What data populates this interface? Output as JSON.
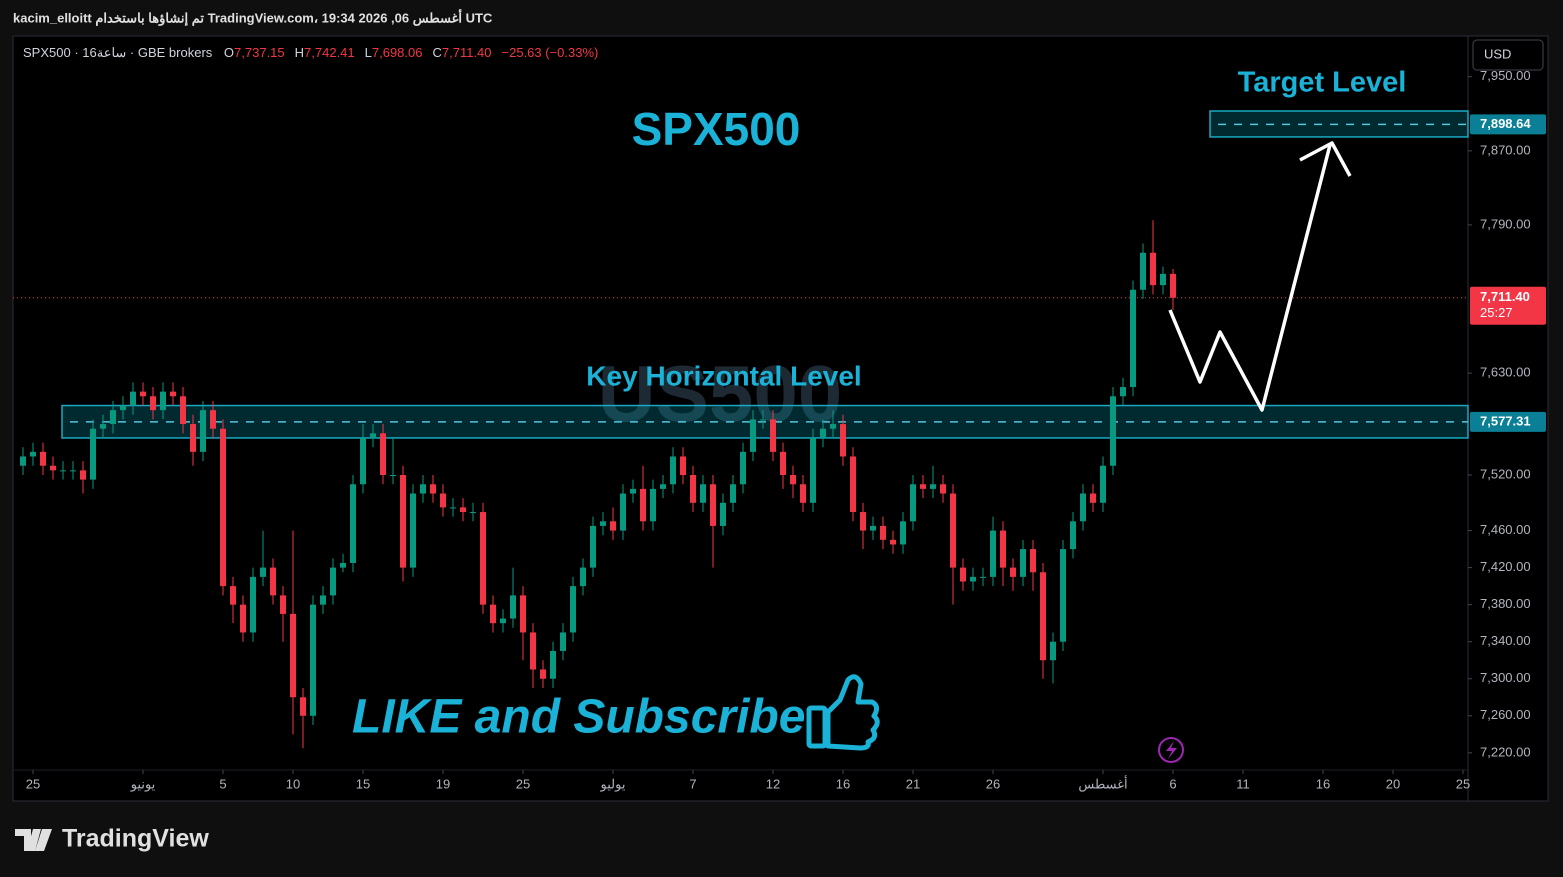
{
  "header": {
    "credit": "kacim_elloitt تم إنشاؤها باستخدام TradingView.com، 19:34 2026 ,06 أغسطس UTC",
    "symbol": "SPX500 · 16ساعة · GBE brokers",
    "ohlc": [
      {
        "k": "O",
        "v": "7,737.15"
      },
      {
        "k": "H",
        "v": "7,742.41"
      },
      {
        "k": "L",
        "v": "7,698.06"
      },
      {
        "k": "C",
        "v": "7,711.40"
      }
    ],
    "change": "−25.63 (−0.33%)",
    "currency": "USD"
  },
  "chart_data": {
    "type": "candlestick",
    "title": "SPX500",
    "watermark": "US500",
    "up_color": "#089981",
    "down_color": "#f23645",
    "annotations": {
      "target": "Target Level",
      "key": "Key Horizontal Level",
      "cta": "LIKE and Subscribe"
    },
    "xlim": [
      -1,
      144.5
    ],
    "ylim": [
      7168,
      7994
    ],
    "xticks": [
      {
        "value": 1,
        "label": "25"
      },
      {
        "value": 12,
        "label": "يونيو"
      },
      {
        "value": 20,
        "label": "5"
      },
      {
        "value": 27,
        "label": "10"
      },
      {
        "value": 34,
        "label": "15"
      },
      {
        "value": 42,
        "label": "19"
      },
      {
        "value": 50,
        "label": "25"
      },
      {
        "value": 59,
        "label": "يوليو"
      },
      {
        "value": 67,
        "label": "7"
      },
      {
        "value": 75,
        "label": "12"
      },
      {
        "value": 82,
        "label": "16"
      },
      {
        "value": 89,
        "label": "21"
      },
      {
        "value": 97,
        "label": "26"
      },
      {
        "value": 108,
        "label": "أغسطس"
      },
      {
        "value": 115,
        "label": "6"
      },
      {
        "value": 122,
        "label": "11"
      },
      {
        "value": 130,
        "label": "16"
      },
      {
        "value": 137,
        "label": "20"
      },
      {
        "value": 144,
        "label": "25"
      }
    ],
    "yticks": [
      {
        "value": 7950,
        "label": "7,950.00"
      },
      {
        "value": 7870,
        "label": "7,870.00"
      },
      {
        "value": 7790,
        "label": "7,790.00"
      },
      {
        "value": 7630,
        "label": "7,630.00"
      },
      {
        "value": 7520,
        "label": "7,520.00"
      },
      {
        "value": 7460,
        "label": "7,460.00"
      },
      {
        "value": 7420,
        "label": "7,420.00"
      },
      {
        "value": 7380,
        "label": "7,380.00"
      },
      {
        "value": 7340,
        "label": "7,340.00"
      },
      {
        "value": 7300,
        "label": "7,300.00"
      },
      {
        "value": 7260,
        "label": "7,260.00"
      },
      {
        "value": 7220,
        "label": "7,220.00"
      }
    ],
    "levels": [
      {
        "value": 7898.64,
        "label": "7,898.64",
        "zone": [
          7885,
          7913
        ]
      },
      {
        "value": 7577.31,
        "label": "7,577.31",
        "zone": [
          7560,
          7595
        ]
      }
    ],
    "last_price": {
      "value": 7711.4,
      "label": "7,711.40",
      "countdown": "25:27"
    },
    "candles": {
      "open": [
        7530,
        7540,
        7545,
        7530,
        7525,
        7525,
        7525,
        7515,
        7570,
        7575,
        7590,
        7595,
        7610,
        7605,
        7590,
        7610,
        7605,
        7575,
        7545,
        7590,
        7570,
        7400,
        7380,
        7350,
        7410,
        7420,
        7390,
        7370,
        7280,
        7260,
        7380,
        7390,
        7420,
        7425,
        7510,
        7560,
        7565,
        7520,
        7520,
        7420,
        7500,
        7510,
        7500,
        7485,
        7485,
        7480,
        7480,
        7380,
        7360,
        7365,
        7390,
        7350,
        7310,
        7300,
        7330,
        7350,
        7400,
        7420,
        7465,
        7470,
        7460,
        7500,
        7505,
        7470,
        7505,
        7510,
        7540,
        7520,
        7490,
        7510,
        7465,
        7490,
        7510,
        7545,
        7580,
        7580,
        7545,
        7520,
        7510,
        7490,
        7560,
        7570,
        7575,
        7540,
        7480,
        7460,
        7465,
        7450,
        7445,
        7470,
        7510,
        7505,
        7510,
        7500,
        7420,
        7405,
        7410,
        7410,
        7460,
        7420,
        7410,
        7440,
        7415,
        7320,
        7340,
        7440,
        7470,
        7500,
        7490,
        7530,
        7605,
        7615,
        7720,
        7760,
        7725,
        7737.15
      ],
      "high": [
        7550,
        7555,
        7555,
        7540,
        7535,
        7535,
        7535,
        7580,
        7585,
        7600,
        7605,
        7620,
        7620,
        7615,
        7620,
        7620,
        7615,
        7585,
        7600,
        7600,
        7580,
        7410,
        7390,
        7420,
        7460,
        7430,
        7400,
        7460,
        7290,
        7390,
        7400,
        7430,
        7435,
        7520,
        7575,
        7575,
        7575,
        7560,
        7530,
        7510,
        7520,
        7520,
        7510,
        7495,
        7495,
        7490,
        7490,
        7390,
        7375,
        7420,
        7400,
        7360,
        7320,
        7340,
        7360,
        7410,
        7430,
        7475,
        7480,
        7485,
        7510,
        7515,
        7530,
        7515,
        7520,
        7550,
        7550,
        7530,
        7520,
        7520,
        7500,
        7520,
        7555,
        7590,
        7590,
        7590,
        7555,
        7530,
        7520,
        7570,
        7580,
        7590,
        7585,
        7550,
        7490,
        7475,
        7475,
        7460,
        7480,
        7520,
        7520,
        7530,
        7520,
        7510,
        7430,
        7420,
        7420,
        7475,
        7470,
        7430,
        7450,
        7450,
        7425,
        7350,
        7450,
        7480,
        7510,
        7510,
        7540,
        7615,
        7625,
        7730,
        7770,
        7795,
        7745,
        7742.41
      ],
      "low": [
        7520,
        7530,
        7520,
        7515,
        7515,
        7515,
        7500,
        7505,
        7560,
        7565,
        7580,
        7585,
        7595,
        7580,
        7580,
        7595,
        7565,
        7530,
        7535,
        7560,
        7390,
        7360,
        7340,
        7340,
        7400,
        7380,
        7340,
        7240,
        7225,
        7250,
        7370,
        7380,
        7415,
        7415,
        7500,
        7550,
        7510,
        7510,
        7405,
        7410,
        7490,
        7490,
        7475,
        7475,
        7470,
        7470,
        7370,
        7350,
        7350,
        7355,
        7320,
        7290,
        7290,
        7290,
        7320,
        7340,
        7390,
        7410,
        7455,
        7450,
        7450,
        7490,
        7460,
        7460,
        7495,
        7500,
        7510,
        7480,
        7480,
        7420,
        7455,
        7480,
        7500,
        7535,
        7570,
        7535,
        7505,
        7495,
        7480,
        7480,
        7550,
        7560,
        7530,
        7470,
        7440,
        7450,
        7440,
        7435,
        7435,
        7460,
        7495,
        7495,
        7490,
        7380,
        7395,
        7395,
        7400,
        7400,
        7400,
        7395,
        7400,
        7395,
        7300,
        7295,
        7330,
        7430,
        7460,
        7480,
        7480,
        7520,
        7595,
        7605,
        7710,
        7715,
        7715,
        7698.06
      ],
      "close": [
        7540,
        7545,
        7530,
        7525,
        7525,
        7525,
        7515,
        7570,
        7575,
        7590,
        7595,
        7610,
        7605,
        7590,
        7610,
        7605,
        7575,
        7545,
        7590,
        7570,
        7400,
        7380,
        7350,
        7410,
        7420,
        7390,
        7370,
        7280,
        7260,
        7380,
        7390,
        7420,
        7425,
        7510,
        7560,
        7565,
        7520,
        7520,
        7420,
        7500,
        7510,
        7500,
        7485,
        7485,
        7480,
        7480,
        7380,
        7360,
        7365,
        7390,
        7350,
        7310,
        7300,
        7330,
        7350,
        7400,
        7420,
        7465,
        7470,
        7460,
        7500,
        7505,
        7470,
        7505,
        7510,
        7540,
        7520,
        7490,
        7510,
        7465,
        7490,
        7510,
        7545,
        7580,
        7580,
        7545,
        7520,
        7510,
        7490,
        7560,
        7570,
        7575,
        7540,
        7480,
        7460,
        7465,
        7450,
        7445,
        7470,
        7510,
        7505,
        7510,
        7500,
        7420,
        7405,
        7410,
        7410,
        7460,
        7420,
        7410,
        7440,
        7415,
        7320,
        7340,
        7440,
        7470,
        7500,
        7490,
        7530,
        7605,
        7615,
        7720,
        7760,
        7725,
        7737.15,
        7711.4
      ]
    }
  },
  "footer": {
    "brand": "TradingView"
  }
}
